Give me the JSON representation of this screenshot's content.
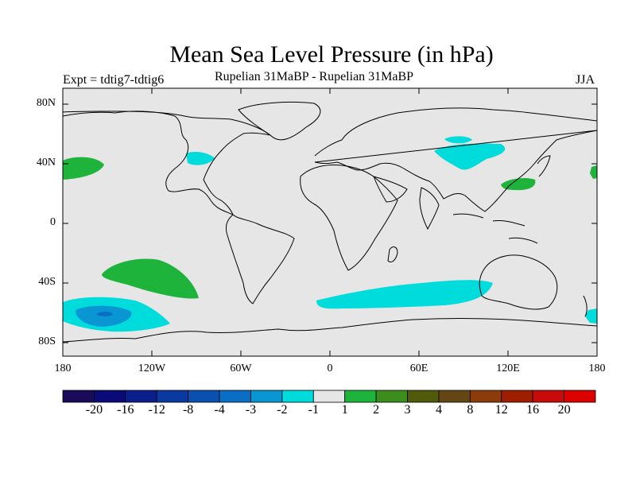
{
  "title": "Mean Sea Level Pressure (in hPa)",
  "experiment": "Expt = tdtig7-tdtig6",
  "subtitle": "Rupelian  31MaBP - Rupelian  31MaBP",
  "season": "JJA",
  "axes": {
    "lat_labels": [
      "80N",
      "40N",
      "0",
      "40S",
      "80S"
    ],
    "lon_labels": [
      "180",
      "120W",
      "60W",
      "0",
      "60E",
      "120E",
      "180"
    ]
  },
  "colorbar": {
    "labels": [
      "-20",
      "-16",
      "-12",
      "-8",
      "-4",
      "-3",
      "-2",
      "-1",
      "1",
      "2",
      "3",
      "4",
      "8",
      "12",
      "16",
      "20"
    ],
    "colors": [
      "#1a0a5a",
      "#0a0a78",
      "#0a1f8c",
      "#0a3aa0",
      "#0a50b0",
      "#0a6ec4",
      "#0a96d2",
      "#00dcdc",
      "#e6e6e6",
      "#1eb43c",
      "#3c8c1e",
      "#505a0a",
      "#644614",
      "#8c3c0a",
      "#a01e00",
      "#c80a0a",
      "#dc0000"
    ]
  },
  "anomaly_regions": [
    {
      "name": "north-pacific-positive",
      "value": "2"
    },
    {
      "name": "north-atlantic-negative",
      "value": "-2"
    },
    {
      "name": "central-asia-negative",
      "value": "-2"
    },
    {
      "name": "east-asia-positive",
      "value": "2"
    },
    {
      "name": "south-pacific-positive",
      "value": "2"
    },
    {
      "name": "southern-ocean-pacific-negative",
      "value": "-4"
    },
    {
      "name": "southern-indian-ocean-negative",
      "value": "-2"
    }
  ]
}
